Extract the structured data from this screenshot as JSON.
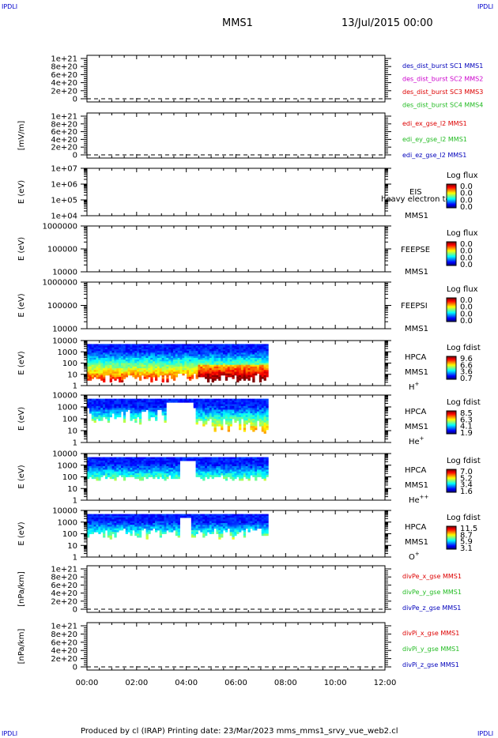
{
  "header": {
    "left_tag": "IPDLI",
    "right_tag": "IPDLI",
    "spacecraft": "MMS1",
    "date": "13/Jul/2015 00:00"
  },
  "footer": {
    "left_tag": "IPDLI",
    "right_tag": "IPDLI",
    "text": "Produced by cl (IRAP)   Printing date: 23/Mar/2023   mms_mms1_srvy_vue_web2.cl"
  },
  "colors": {
    "red": "#dd0000",
    "green": "#22bb22",
    "blue": "#0000bb",
    "magenta": "#cc00cc"
  },
  "chart_data": [
    {
      "type": "line",
      "ylabel": "",
      "ticks": [
        "1e+21",
        "8e+20",
        "6e+20",
        "4e+20",
        "2e+20",
        "0"
      ],
      "legend": [
        {
          "text": "des_dist_burst SC1 MMS1",
          "color": "#0000bb"
        },
        {
          "text": "des_dist_burst SC2 MMS2",
          "color": "#cc00cc"
        },
        {
          "text": "des_dist_burst SC3 MMS3",
          "color": "#dd0000"
        },
        {
          "text": "des_dist_burst SC4 MMS4",
          "color": "#22bb22"
        }
      ]
    },
    {
      "type": "line",
      "ylabel": "[mV/m]",
      "ticks": [
        "1e+21",
        "8e+20",
        "6e+20",
        "4e+20",
        "2e+20",
        "0"
      ],
      "legend": [
        {
          "text": "edi_ex_gse_l2 MMS1",
          "color": "#dd0000"
        },
        {
          "text": "edi_ey_gse_l2 MMS1",
          "color": "#22bb22"
        },
        {
          "text": "edi_ez_gse_l2 MMS1",
          "color": "#0000bb"
        }
      ]
    },
    {
      "type": "heatmap",
      "ylabel": "E (eV)",
      "ticks": [
        "1e+07",
        "1e+06",
        "1e+05",
        "1e+04"
      ],
      "labels": [
        "EIS",
        "MMS1"
      ],
      "overlay": "heavy electron to",
      "cbar_title": "Log flux",
      "cbar_ticks": [
        "0.0",
        "0.0",
        "0.0",
        "0.0"
      ]
    },
    {
      "type": "heatmap",
      "ylabel": "E (eV)",
      "ticks": [
        "1000000",
        "100000",
        "10000"
      ],
      "labels": [
        "FEEPSE",
        "MMS1"
      ],
      "cbar_title": "Log flux",
      "cbar_ticks": [
        "0.0",
        "0.0",
        "0.0",
        "0.0"
      ]
    },
    {
      "type": "heatmap",
      "ylabel": "E (eV)",
      "ticks": [
        "1000000",
        "100000",
        "10000"
      ],
      "labels": [
        "FEEPSI",
        "MMS1"
      ],
      "cbar_title": "Log flux",
      "cbar_ticks": [
        "0.0",
        "0.0",
        "0.0",
        "0.0"
      ]
    },
    {
      "type": "heatmap",
      "ylabel": "E (eV)",
      "ticks": [
        "10000",
        "1000",
        "100",
        "10",
        "1"
      ],
      "labels": [
        "HPCA",
        "MMS1"
      ],
      "species": "H",
      "species_sup": "+",
      "cbar_title": "Log fdist",
      "cbar_ticks": [
        "9.6",
        "6.6",
        "3.6",
        "0.7"
      ],
      "data_start_hour": 0,
      "data_end_hour": 7.3
    },
    {
      "type": "heatmap",
      "ylabel": "E (eV)",
      "ticks": [
        "10000",
        "1000",
        "100",
        "10",
        "1"
      ],
      "labels": [
        "HPCA",
        "MMS1"
      ],
      "species": "He",
      "species_sup": "+",
      "cbar_title": "Log fdist",
      "cbar_ticks": [
        "8.5",
        "6.3",
        "4.1",
        "1.9"
      ],
      "data_start_hour": 0,
      "data_end_hour": 7.3
    },
    {
      "type": "heatmap",
      "ylabel": "E (eV)",
      "ticks": [
        "10000",
        "1000",
        "100",
        "10",
        "1"
      ],
      "labels": [
        "HPCA",
        "MMS1"
      ],
      "species": "He",
      "species_sup": "++",
      "cbar_title": "Log fdist",
      "cbar_ticks": [
        "7.0",
        "5.2",
        "3.4",
        "1.6"
      ],
      "data_start_hour": 0,
      "data_end_hour": 7.3
    },
    {
      "type": "heatmap",
      "ylabel": "E (eV)",
      "ticks": [
        "10000",
        "1000",
        "100",
        "10",
        "1"
      ],
      "labels": [
        "HPCA",
        "MMS1"
      ],
      "species": "O",
      "species_sup": "+",
      "cbar_title": "Log fdist",
      "cbar_ticks": [
        "11.5",
        "8.7",
        "5.9",
        "3.1"
      ],
      "data_start_hour": 0,
      "data_end_hour": 7.3
    },
    {
      "type": "line",
      "ylabel": "[nPa/km]",
      "ticks": [
        "1e+21",
        "8e+20",
        "6e+20",
        "4e+20",
        "2e+20",
        "0"
      ],
      "legend": [
        {
          "text": "divPe_x_gse MMS1",
          "color": "#dd0000"
        },
        {
          "text": "divPe_y_gse MMS1",
          "color": "#22bb22"
        },
        {
          "text": "divPe_z_gse MMS1",
          "color": "#0000bb"
        }
      ]
    },
    {
      "type": "line",
      "ylabel": "[nPa/km]",
      "ticks": [
        "1e+21",
        "8e+20",
        "6e+20",
        "4e+20",
        "2e+20",
        "0"
      ],
      "legend": [
        {
          "text": "divPi_x_gse MMS1",
          "color": "#dd0000"
        },
        {
          "text": "divPi_y_gse MMS1",
          "color": "#22bb22"
        },
        {
          "text": "divPi_z_gse MMS1",
          "color": "#0000bb"
        }
      ]
    }
  ],
  "xaxis": {
    "tick_labels": [
      "00:00",
      "02:00",
      "04:00",
      "06:00",
      "08:00",
      "10:00",
      "12:00"
    ],
    "range_hours": [
      0,
      12
    ]
  }
}
